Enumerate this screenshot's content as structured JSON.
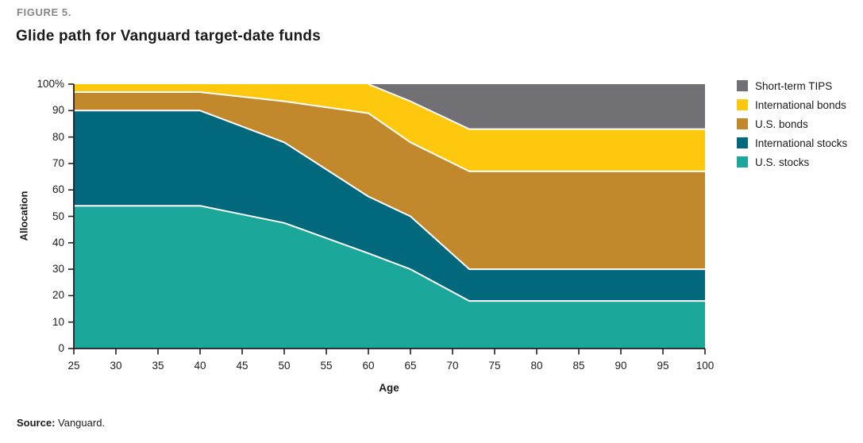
{
  "figure": {
    "label": "FIGURE 5.",
    "title": "Glide path for Vanguard target-date funds",
    "source_label": "Source:",
    "source_text": " Vanguard."
  },
  "chart_data": {
    "type": "area",
    "stacked": true,
    "title": "Glide path for Vanguard target-date funds",
    "xlabel": "Age",
    "ylabel": "Allocation",
    "xlim": [
      25,
      100
    ],
    "ylim": [
      0,
      100
    ],
    "grid": false,
    "legend_position": "right",
    "x": [
      25,
      40,
      50,
      60,
      65,
      72,
      100
    ],
    "series": [
      {
        "name": "U.S. stocks",
        "color": "#1CA79B",
        "values": [
          54,
          54,
          47.5,
          36,
          30,
          18,
          18
        ]
      },
      {
        "name": "International stocks",
        "color": "#01697B",
        "values": [
          36,
          36,
          30.5,
          21.5,
          20,
          12,
          12
        ]
      },
      {
        "name": "U.S. bonds",
        "color": "#C1882C",
        "values": [
          7,
          7,
          15.5,
          31.5,
          28,
          37,
          37
        ]
      },
      {
        "name": "International bonds",
        "color": "#FEC80F",
        "values": [
          3,
          3,
          6.5,
          11,
          15.5,
          16,
          16
        ]
      },
      {
        "name": "Short-term TIPS",
        "color": "#717175",
        "values": [
          0,
          0,
          0,
          0,
          6.5,
          17,
          17
        ]
      }
    ],
    "x_ticks": [
      25,
      30,
      35,
      40,
      45,
      50,
      55,
      60,
      65,
      70,
      75,
      80,
      85,
      90,
      95,
      100
    ],
    "y_ticks": [
      0,
      10,
      20,
      30,
      40,
      50,
      60,
      70,
      80,
      90,
      100
    ],
    "y_top_tick_label": "100%",
    "separator_color": "#ffffff",
    "axis_color": "#231f20"
  },
  "legend": {
    "items": [
      {
        "label": "Short-term TIPS",
        "color": "#717175"
      },
      {
        "label": "International bonds",
        "color": "#FEC80F"
      },
      {
        "label": "U.S. bonds",
        "color": "#C1882C"
      },
      {
        "label": "International stocks",
        "color": "#01697B"
      },
      {
        "label": "U.S. stocks",
        "color": "#1CA79B"
      }
    ]
  }
}
